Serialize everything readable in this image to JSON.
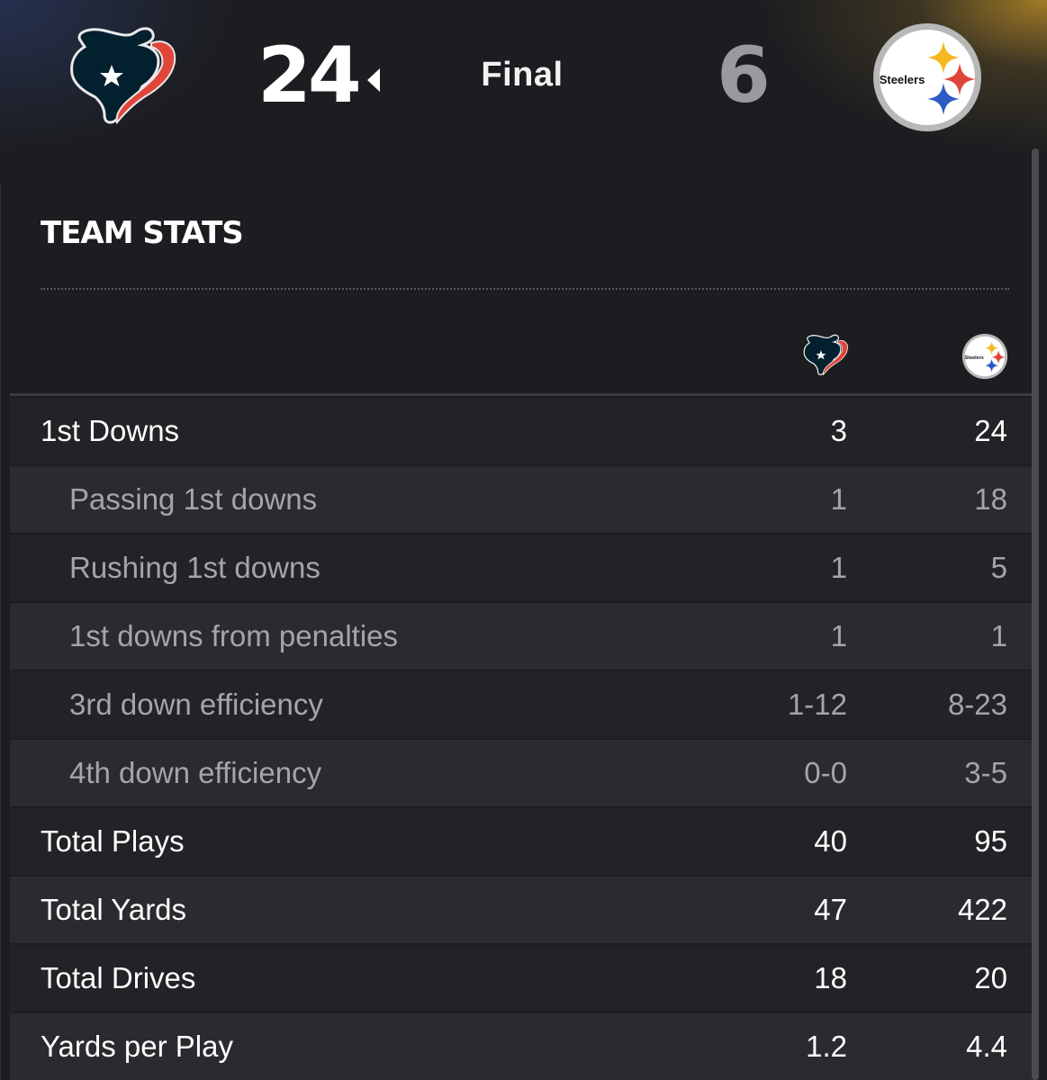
{
  "scoreboard": {
    "home": {
      "team": "Texans",
      "logo_icon": "texans-logo-icon",
      "score": "24"
    },
    "away": {
      "team": "Steelers",
      "logo_icon": "steelers-logo-icon",
      "score": "6",
      "logo_text": "Steelers"
    },
    "status": "Final",
    "winner_indicator_icon": "caret-left-icon"
  },
  "team_stats": {
    "title": "TEAM STATS",
    "columns": [
      {
        "logo_icon": "texans-logo-icon"
      },
      {
        "logo_icon": "steelers-logo-icon"
      }
    ],
    "rows": [
      {
        "label": "1st Downs",
        "home": "3",
        "away": "24",
        "level": "main"
      },
      {
        "label": "Passing 1st downs",
        "home": "1",
        "away": "18",
        "level": "sub"
      },
      {
        "label": "Rushing 1st downs",
        "home": "1",
        "away": "5",
        "level": "sub"
      },
      {
        "label": "1st downs from penalties",
        "home": "1",
        "away": "1",
        "level": "sub"
      },
      {
        "label": "3rd down efficiency",
        "home": "1-12",
        "away": "8-23",
        "level": "sub"
      },
      {
        "label": "4th down efficiency",
        "home": "0-0",
        "away": "3-5",
        "level": "sub"
      },
      {
        "label": "Total Plays",
        "home": "40",
        "away": "95",
        "level": "main"
      },
      {
        "label": "Total Yards",
        "home": "47",
        "away": "422",
        "level": "main"
      },
      {
        "label": "Total Drives",
        "home": "18",
        "away": "20",
        "level": "main"
      },
      {
        "label": "Yards per Play",
        "home": "1.2",
        "away": "4.4",
        "level": "main"
      }
    ]
  },
  "colors": {
    "background": "#1c1d20",
    "row_dark": "#222326",
    "row_light": "#2a2b2f",
    "texans_navy": "#03202f",
    "texans_red": "#e0453a",
    "steelers_gold": "#f5b820",
    "steelers_red": "#e0453a",
    "steelers_blue": "#2d5bc4",
    "muted_text": "#a4a5a9"
  }
}
